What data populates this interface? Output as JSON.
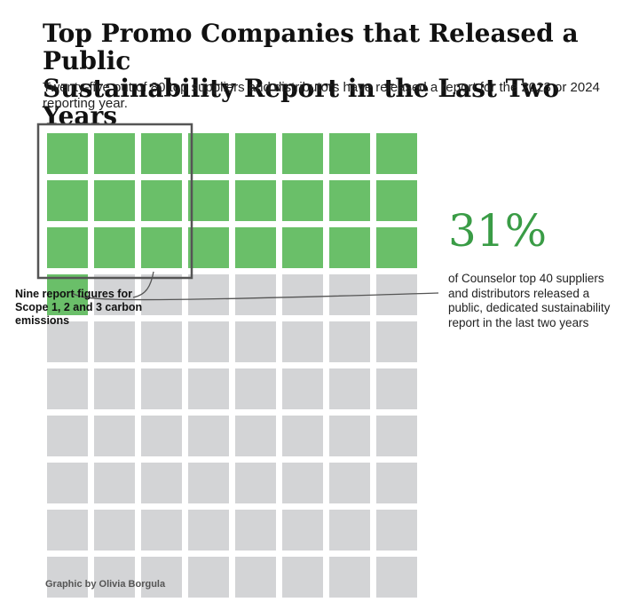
{
  "title_line1": "Top Promo Companies that Released a Public",
  "title_line2": "Sustainability Report in the Last Two Years",
  "subtitle": "Twenty-five out of 80 top suppliers and distributors have released a report for the 2023 or 2024 reporting year.",
  "callout": {
    "percent": "31%",
    "description": "of Counselor top 40 suppliers and distributors released a public, dedicated sustainability report in the last two years"
  },
  "annotation": "Nine report figures for Scope 1, 2 and 3 carbon emissions",
  "credit": "Graphic by Olivia Borgula",
  "colors": {
    "released": "#6abf69",
    "not_released": "#d3d4d6",
    "accent": "#3a9c46",
    "box": "#555555"
  },
  "chart_data": {
    "type": "waffle",
    "rows": 10,
    "columns": 8,
    "total": 80,
    "released": 25,
    "not_released": 55,
    "scope_emissions_reporters": 9
  }
}
